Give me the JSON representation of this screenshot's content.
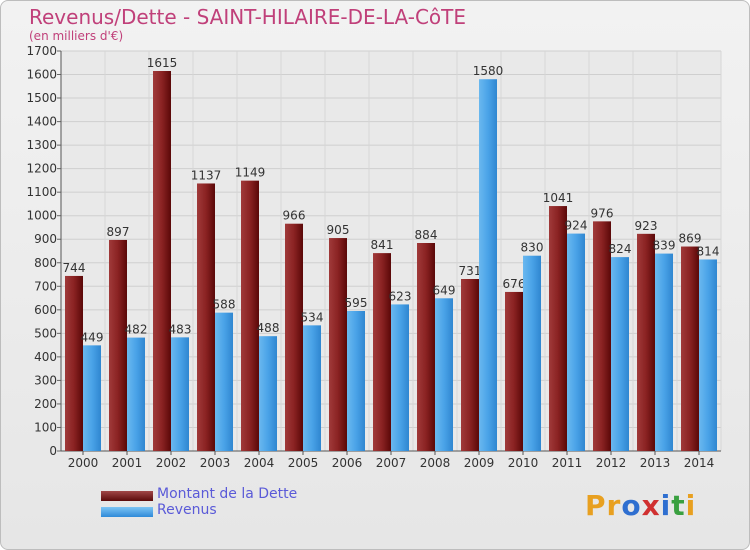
{
  "chart_data": {
    "type": "bar",
    "title": "Revenus/Dette - SAINT-HILAIRE-DE-LA-CôTE",
    "subtitle": "(en milliers d'€)",
    "categories": [
      "2000",
      "2001",
      "2002",
      "2003",
      "2004",
      "2005",
      "2006",
      "2007",
      "2008",
      "2009",
      "2010",
      "2011",
      "2012",
      "2013",
      "2014"
    ],
    "series": [
      {
        "name": "Montant de la Dette",
        "color": "#7a1a1a",
        "values": [
          744,
          897,
          1615,
          1137,
          1149,
          966,
          905,
          841,
          884,
          731,
          676,
          1041,
          976,
          923,
          869
        ]
      },
      {
        "name": "Revenus",
        "color": "#4aa3e8",
        "values": [
          449,
          482,
          483,
          588,
          488,
          534,
          595,
          623,
          649,
          1580,
          830,
          924,
          824,
          839,
          814
        ]
      }
    ],
    "ylim": [
      0,
      1700
    ],
    "yticks": [
      0,
      100,
      200,
      300,
      400,
      500,
      600,
      700,
      800,
      900,
      1000,
      1100,
      1200,
      1300,
      1400,
      1500,
      1600,
      1700
    ],
    "grid": true,
    "legend_position": "bottom-left"
  },
  "logo": {
    "text": "Proxiti",
    "letters": [
      {
        "ch": "P",
        "color": "#e8a020"
      },
      {
        "ch": "r",
        "color": "#e8a020"
      },
      {
        "ch": "o",
        "color": "#2f6fd0"
      },
      {
        "ch": "x",
        "color": "#d03030"
      },
      {
        "ch": "i",
        "color": "#2f6fd0"
      },
      {
        "ch": "t",
        "color": "#3aa040"
      },
      {
        "ch": "i",
        "color": "#e8a020"
      }
    ]
  }
}
